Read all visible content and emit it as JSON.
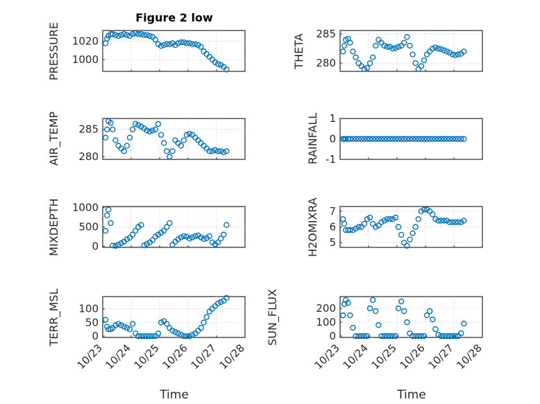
{
  "figure": {
    "title": "Figure 2 low",
    "xlabel": "Time",
    "x_tick_labels": [
      "10/23",
      "10/24",
      "10/25",
      "10/26",
      "10/27",
      "10/28"
    ],
    "marker_color": "#0072BD"
  },
  "chart_data": [
    {
      "type": "scatter",
      "id": "pressure",
      "ylabel": "PRESSURE",
      "ylim": [
        987,
        1032
      ],
      "yticks": [
        1000,
        1020
      ],
      "grid": true,
      "xlim": [
        0,
        5
      ],
      "x": [
        0.1,
        0.15,
        0.2,
        0.28,
        0.35,
        0.45,
        0.55,
        0.65,
        0.75,
        0.85,
        0.95,
        1.05,
        1.15,
        1.25,
        1.35,
        1.45,
        1.55,
        1.65,
        1.75,
        1.85,
        1.95,
        2.05,
        2.15,
        2.25,
        2.35,
        2.45,
        2.55,
        2.65,
        2.75,
        2.85,
        2.95,
        3.05,
        3.15,
        3.25,
        3.35,
        3.45,
        3.55,
        3.65,
        3.75,
        3.85,
        3.95,
        4.05,
        4.15,
        4.25,
        4.35
      ],
      "y": [
        1018,
        1023,
        1026,
        1028,
        1028,
        1027,
        1026,
        1027,
        1028,
        1027,
        1026,
        1028,
        1029,
        1028,
        1028,
        1027,
        1027,
        1026,
        1025,
        1022,
        1017,
        1015,
        1016,
        1017,
        1017,
        1018,
        1016,
        1018,
        1019,
        1019,
        1018,
        1018,
        1017,
        1017,
        1016,
        1014,
        1009,
        1006,
        1003,
        1000,
        997,
        995,
        994,
        992,
        989
      ]
    },
    {
      "type": "scatter",
      "id": "theta",
      "ylabel": "THETA",
      "ylim": [
        278.6,
        285.6
      ],
      "yticks": [
        280,
        285
      ],
      "grid": true,
      "xlim": [
        0,
        5
      ],
      "x": [
        0.1,
        0.15,
        0.2,
        0.28,
        0.35,
        0.45,
        0.55,
        0.65,
        0.75,
        0.85,
        0.95,
        1.05,
        1.15,
        1.25,
        1.35,
        1.45,
        1.55,
        1.65,
        1.75,
        1.85,
        1.95,
        2.05,
        2.15,
        2.25,
        2.35,
        2.45,
        2.55,
        2.65,
        2.75,
        2.85,
        2.95,
        3.05,
        3.15,
        3.25,
        3.35,
        3.45,
        3.55,
        3.65,
        3.75,
        3.85,
        3.95,
        4.05,
        4.15,
        4.25,
        4.35
      ],
      "y": [
        282,
        283,
        284,
        284.2,
        283.5,
        282,
        281,
        280,
        279.5,
        279,
        279.2,
        280,
        281,
        283,
        284,
        283.5,
        283,
        282.8,
        282.8,
        282.5,
        282.6,
        282.8,
        283,
        283.5,
        284.5,
        283,
        281.5,
        280,
        279,
        279.5,
        280.5,
        281.5,
        282,
        282.5,
        282.7,
        282.5,
        282.4,
        282.2,
        282,
        281.8,
        281.5,
        281.4,
        281.5,
        281.6,
        282
      ]
    },
    {
      "type": "scatter",
      "id": "air_temp",
      "ylabel": "AIR_TEMP",
      "ylim": [
        279.5,
        287
      ],
      "yticks": [
        280,
        285
      ],
      "grid": true,
      "xlim": [
        0,
        5
      ],
      "x": [
        0.1,
        0.15,
        0.2,
        0.28,
        0.35,
        0.45,
        0.55,
        0.65,
        0.75,
        0.85,
        0.95,
        1.05,
        1.15,
        1.25,
        1.35,
        1.45,
        1.55,
        1.65,
        1.75,
        1.85,
        1.95,
        2.05,
        2.15,
        2.25,
        2.35,
        2.45,
        2.55,
        2.65,
        2.75,
        2.85,
        2.95,
        3.05,
        3.15,
        3.25,
        3.35,
        3.45,
        3.55,
        3.65,
        3.75,
        3.85,
        3.95,
        4.05,
        4.15,
        4.25,
        4.35
      ],
      "y": [
        283.5,
        285,
        286.5,
        286.2,
        285,
        283,
        282,
        281.5,
        281,
        282,
        283.5,
        285,
        286,
        285.8,
        285.5,
        285.2,
        284.8,
        284.6,
        284.8,
        285,
        286,
        284,
        282.5,
        281,
        280,
        281,
        283,
        282.5,
        282,
        283,
        284,
        284.2,
        284,
        283.5,
        283,
        282.5,
        282,
        281.5,
        281,
        281,
        281.2,
        281,
        281,
        280.8,
        281
      ]
    },
    {
      "type": "scatter",
      "id": "rainfall",
      "ylabel": "RAINFALL",
      "ylim": [
        -1,
        1
      ],
      "yticks": [
        -1,
        0,
        1
      ],
      "grid": false,
      "xlim": [
        0,
        5
      ],
      "x": [
        0.1,
        0.15,
        0.2,
        0.28,
        0.35,
        0.45,
        0.55,
        0.65,
        0.75,
        0.85,
        0.95,
        1.05,
        1.15,
        1.25,
        1.35,
        1.45,
        1.55,
        1.65,
        1.75,
        1.85,
        1.95,
        2.05,
        2.15,
        2.25,
        2.35,
        2.45,
        2.55,
        2.65,
        2.75,
        2.85,
        2.95,
        3.05,
        3.15,
        3.25,
        3.35,
        3.45,
        3.55,
        3.65,
        3.75,
        3.85,
        3.95,
        4.05,
        4.15,
        4.25,
        4.35
      ],
      "y": [
        0,
        0,
        0,
        0,
        0,
        0,
        0,
        0,
        0,
        0,
        0,
        0,
        0,
        0,
        0,
        0,
        0,
        0,
        0,
        0,
        0,
        0,
        0,
        0,
        0,
        0,
        0,
        0,
        0,
        0,
        0,
        0,
        0,
        0,
        0,
        0,
        0,
        0,
        0,
        0,
        0,
        0,
        0,
        0,
        0
      ]
    },
    {
      "type": "scatter",
      "id": "mixdepth",
      "ylabel": "MIXDEPTH",
      "ylim": [
        -30,
        1030
      ],
      "yticks": [
        0,
        500,
        1000
      ],
      "grid": true,
      "xlim": [
        0,
        5
      ],
      "x": [
        0.1,
        0.15,
        0.2,
        0.28,
        0.35,
        0.45,
        0.55,
        0.65,
        0.75,
        0.85,
        0.95,
        1.05,
        1.15,
        1.25,
        1.35,
        1.45,
        1.55,
        1.65,
        1.75,
        1.85,
        1.95,
        2.05,
        2.15,
        2.25,
        2.35,
        2.45,
        2.55,
        2.65,
        2.75,
        2.85,
        2.95,
        3.05,
        3.15,
        3.25,
        3.35,
        3.45,
        3.55,
        3.65,
        3.75,
        3.85,
        3.95,
        4.05,
        4.15,
        4.25,
        4.35
      ],
      "y": [
        400,
        800,
        950,
        600,
        20,
        10,
        40,
        80,
        120,
        180,
        220,
        300,
        400,
        500,
        550,
        20,
        60,
        100,
        160,
        250,
        300,
        350,
        400,
        500,
        600,
        40,
        120,
        180,
        230,
        260,
        250,
        200,
        230,
        260,
        280,
        230,
        190,
        210,
        260,
        100,
        50,
        100,
        200,
        300,
        550
      ]
    },
    {
      "type": "scatter",
      "id": "h2omixra",
      "ylabel": "H2OMIXRA",
      "ylim": [
        4.7,
        7.3
      ],
      "yticks": [
        5,
        6,
        7
      ],
      "grid": true,
      "xlim": [
        0,
        5
      ],
      "x": [
        0.1,
        0.15,
        0.2,
        0.28,
        0.35,
        0.45,
        0.55,
        0.65,
        0.75,
        0.85,
        0.95,
        1.05,
        1.15,
        1.25,
        1.35,
        1.45,
        1.55,
        1.65,
        1.75,
        1.85,
        1.95,
        2.05,
        2.15,
        2.25,
        2.35,
        2.45,
        2.55,
        2.65,
        2.75,
        2.85,
        2.95,
        3.05,
        3.15,
        3.25,
        3.35,
        3.45,
        3.55,
        3.65,
        3.75,
        3.85,
        3.95,
        4.05,
        4.15,
        4.25,
        4.35
      ],
      "y": [
        6.5,
        6.2,
        5.8,
        5.8,
        5.8,
        5.8,
        5.9,
        6,
        6,
        6.2,
        6.5,
        6.6,
        6.2,
        6,
        6.1,
        6.3,
        6.4,
        6.5,
        6.5,
        6.5,
        6.6,
        6,
        5.5,
        5,
        4.8,
        5.2,
        5.6,
        6,
        6.5,
        7,
        7.1,
        7.1,
        7.0,
        6.8,
        6.5,
        6.4,
        6.4,
        6.4,
        6.4,
        6.3,
        6.3,
        6.3,
        6.3,
        6.3,
        6.4
      ]
    },
    {
      "type": "scatter",
      "id": "terr_msl",
      "ylabel": "TERR_MSL",
      "ylim": [
        -5,
        145
      ],
      "yticks": [
        0,
        50,
        100
      ],
      "grid": true,
      "xlim": [
        0,
        5
      ],
      "x": [
        0.1,
        0.15,
        0.2,
        0.28,
        0.35,
        0.45,
        0.55,
        0.65,
        0.75,
        0.85,
        0.95,
        1.05,
        1.15,
        1.25,
        1.35,
        1.45,
        1.55,
        1.65,
        1.75,
        1.85,
        1.95,
        2.05,
        2.15,
        2.25,
        2.35,
        2.45,
        2.55,
        2.65,
        2.75,
        2.85,
        2.95,
        3.05,
        3.15,
        3.25,
        3.35,
        3.45,
        3.55,
        3.65,
        3.75,
        3.85,
        3.95,
        4.05,
        4.15,
        4.25,
        4.35
      ],
      "y": [
        60,
        35,
        25,
        25,
        30,
        40,
        45,
        40,
        35,
        30,
        25,
        45,
        10,
        0,
        0,
        0,
        0,
        0,
        0,
        0,
        10,
        50,
        55,
        45,
        30,
        20,
        15,
        10,
        5,
        0,
        0,
        0,
        5,
        10,
        20,
        30,
        50,
        70,
        90,
        100,
        110,
        120,
        125,
        130,
        140
      ]
    },
    {
      "type": "scatter",
      "id": "sun_flux",
      "ylabel": "SUN_FLUX",
      "ylim": [
        -10,
        285
      ],
      "yticks": [
        0,
        100,
        200
      ],
      "grid": true,
      "xlim": [
        0,
        5
      ],
      "x": [
        0.1,
        0.15,
        0.2,
        0.28,
        0.35,
        0.45,
        0.55,
        0.65,
        0.75,
        0.85,
        0.95,
        1.05,
        1.15,
        1.25,
        1.35,
        1.45,
        1.55,
        1.65,
        1.75,
        1.85,
        1.95,
        2.05,
        2.15,
        2.25,
        2.35,
        2.45,
        2.55,
        2.65,
        2.75,
        2.85,
        2.95,
        3.05,
        3.15,
        3.25,
        3.35,
        3.45,
        3.55,
        3.65,
        3.75,
        3.85,
        3.95,
        4.05,
        4.15,
        4.25,
        4.35
      ],
      "y": [
        150,
        230,
        260,
        240,
        150,
        60,
        0,
        0,
        0,
        0,
        0,
        200,
        260,
        180,
        80,
        0,
        0,
        0,
        0,
        0,
        0,
        200,
        250,
        180,
        100,
        20,
        0,
        0,
        0,
        0,
        0,
        150,
        180,
        120,
        50,
        10,
        0,
        0,
        0,
        0,
        0,
        0,
        0,
        20,
        90
      ]
    }
  ]
}
